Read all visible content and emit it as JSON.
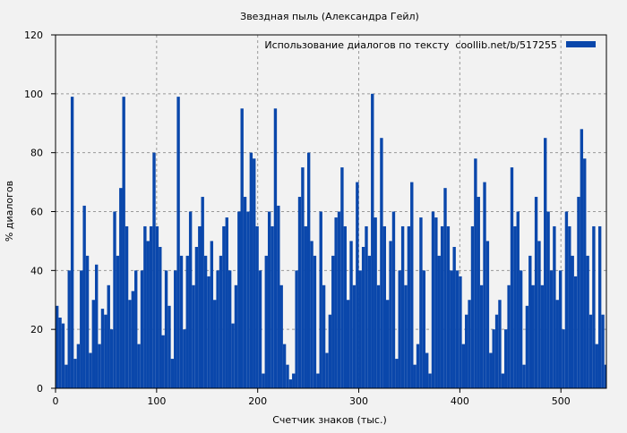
{
  "chart_data": {
    "type": "bar",
    "title": "Звездная пыль (Александра Гейл)",
    "xlabel": "Счетчик знаков (тыс.)",
    "ylabel": "% диалогов",
    "xlim": [
      0,
      545
    ],
    "ylim": [
      0,
      120
    ],
    "xticks": [
      0,
      100,
      200,
      300,
      400,
      500
    ],
    "yticks": [
      0,
      20,
      40,
      60,
      80,
      100,
      120
    ],
    "grid": true,
    "legend_position": "top-right",
    "series": [
      {
        "name": "Использование диалогов по тексту  coollib.net/b/517255",
        "color": "#0a47ab",
        "x_start": 0,
        "x_step": 3,
        "values": [
          28,
          24,
          22,
          8,
          40,
          99,
          10,
          15,
          40,
          62,
          45,
          12,
          30,
          42,
          15,
          27,
          25,
          35,
          20,
          60,
          45,
          68,
          99,
          55,
          30,
          33,
          40,
          15,
          40,
          55,
          50,
          55,
          80,
          55,
          48,
          18,
          40,
          28,
          10,
          40,
          99,
          45,
          20,
          45,
          60,
          35,
          48,
          55,
          65,
          45,
          38,
          50,
          30,
          40,
          45,
          55,
          58,
          40,
          22,
          35,
          60,
          95,
          65,
          60,
          80,
          78,
          55,
          40,
          5,
          45,
          60,
          55,
          95,
          62,
          35,
          15,
          8,
          3,
          5,
          40,
          65,
          75,
          55,
          80,
          50,
          45,
          5,
          60,
          35,
          12,
          25,
          45,
          58,
          60,
          75,
          55,
          30,
          50,
          35,
          70,
          40,
          48,
          55,
          45,
          100,
          58,
          35,
          85,
          55,
          30,
          50,
          60,
          10,
          40,
          55,
          35,
          55,
          70,
          8,
          15,
          58,
          40,
          12,
          5,
          60,
          58,
          45,
          55,
          68,
          55,
          40,
          48,
          40,
          38,
          15,
          25,
          30,
          55,
          78,
          65,
          35,
          70,
          50,
          12,
          20,
          25,
          30,
          5,
          20,
          35,
          75,
          55,
          60,
          40,
          8,
          28,
          45,
          35,
          65,
          50,
          35,
          85,
          60,
          40,
          55,
          30,
          40,
          20,
          60,
          55,
          45,
          38,
          65,
          88,
          78,
          45,
          25,
          55,
          15,
          55,
          25,
          8
        ]
      }
    ]
  }
}
